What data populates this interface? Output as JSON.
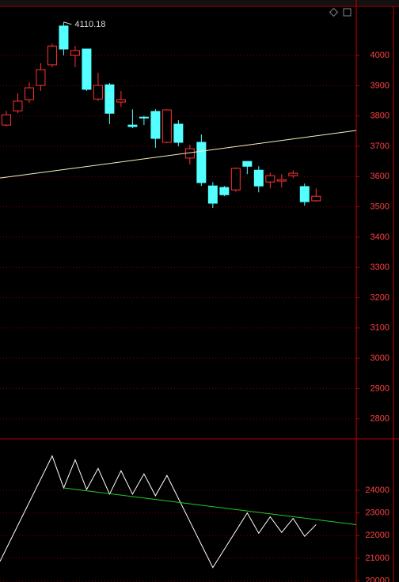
{
  "chart_data": [
    {
      "type": "candlestick",
      "up_color": "#ff3232",
      "down_color": "#54ffff",
      "grid": true,
      "xlim": [
        -0.55,
        30.5
      ],
      "ylim": [
        2734,
        4162
      ],
      "yticks": [
        2800,
        2900,
        3000,
        3100,
        3200,
        3300,
        3400,
        3500,
        3600,
        3700,
        3800,
        3900,
        4000
      ],
      "open": [
        3770,
        3817,
        3854,
        3901,
        3969,
        4097,
        4000,
        4021,
        3856,
        3903,
        3846,
        3770,
        3796,
        3815,
        3713,
        3773,
        3661,
        3713,
        3569,
        3564,
        3556,
        3650,
        3621,
        3582,
        3585,
        3603,
        3567,
        3520
      ],
      "high": [
        3817,
        3875,
        3911,
        3974,
        4039,
        4110.18,
        4031,
        4021,
        3943,
        3909,
        3883,
        3822,
        3800,
        3822,
        3822,
        3786,
        3705,
        3739,
        3582,
        3569,
        3630,
        3650,
        3634,
        3613,
        3608,
        3621,
        3577,
        3561
      ],
      "low": [
        3765,
        3809,
        3843,
        3883,
        3961,
        4000,
        3961,
        3883,
        3849,
        3773,
        3830,
        3760,
        3770,
        3695,
        3710,
        3700,
        3640,
        3569,
        3496,
        3535,
        3550,
        3608,
        3548,
        3561,
        3564,
        3595,
        3504,
        3517
      ],
      "close": [
        3804,
        3849,
        3893,
        3953,
        4031,
        4021,
        4016,
        3888,
        3901,
        3809,
        3854,
        3765,
        3794,
        3726,
        3820,
        3713,
        3692,
        3580,
        3512,
        3540,
        3627,
        3634,
        3569,
        3603,
        3590,
        3611,
        3517,
        3535
      ],
      "max_label": "4110.18",
      "trendline": {
        "color": "#f5f0c0",
        "x": [
          -0.55,
          30.5
        ],
        "values": [
          3595,
          3752
        ]
      }
    },
    {
      "type": "line",
      "xlim": [
        -0.55,
        30.5
      ],
      "ylim": [
        19950,
        26200
      ],
      "grid": true,
      "yticks": [
        20000,
        21000,
        22000,
        23000,
        24000
      ],
      "series": [
        {
          "color": "#ffffff",
          "x": [
            -0.55,
            4,
            5,
            6,
            7,
            8,
            9,
            10,
            11,
            12,
            13,
            14,
            18,
            21,
            22,
            23,
            24,
            25,
            26,
            27
          ],
          "values": [
            20862,
            25517,
            24103,
            25345,
            24034,
            24966,
            23828,
            24862,
            23828,
            24724,
            23759,
            24655,
            20586,
            23000,
            22103,
            22828,
            22138,
            22759,
            21966,
            22483
          ]
        },
        {
          "color": "#22cc22",
          "x": [
            5,
            30.5
          ],
          "values": [
            24103,
            22483
          ]
        }
      ]
    }
  ]
}
